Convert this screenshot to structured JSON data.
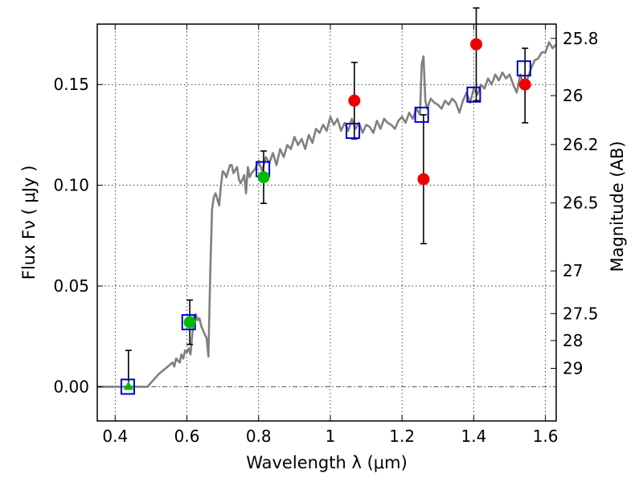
{
  "chart_data": {
    "type": "scatter",
    "xlabel": "Wavelength  λ (μm)",
    "ylabel": "Flux  Fν  ( μJy )",
    "y2label": "Magnitude (AB)",
    "xlim": [
      0.35,
      1.63
    ],
    "ylim": [
      -0.017,
      0.18
    ],
    "grid": true,
    "x_ticks": [
      0.4,
      0.6,
      0.8,
      1.0,
      1.2,
      1.4,
      1.6
    ],
    "x_tick_labels": [
      "0.4",
      "0.6",
      "0.8",
      "1",
      "1.2",
      "1.4",
      "1.6"
    ],
    "y_ticks": [
      0.0,
      0.05,
      0.1,
      0.15
    ],
    "y_tick_labels": [
      "0.00",
      "0.05",
      "0.10",
      "0.15"
    ],
    "magnitude_ticks": [
      {
        "label": "25.8",
        "flux": 0.1729
      },
      {
        "label": "26",
        "flux": 0.1445
      },
      {
        "label": "26.2",
        "flux": 0.1202
      },
      {
        "label": "26.5",
        "flux": 0.0912
      },
      {
        "label": "27",
        "flux": 0.0575
      },
      {
        "label": "27.5",
        "flux": 0.0363
      },
      {
        "label": "28",
        "flux": 0.0229
      },
      {
        "label": "29",
        "flux": 0.0091
      }
    ],
    "baseline_y": 0.0,
    "colors": {
      "model": "#808080",
      "model_photometry": "#0000cc",
      "red_points": "#ee0000",
      "green_points": "#00bb00",
      "errorbar": "#000000",
      "baseline": "#555555"
    },
    "series": [
      {
        "kind": "line",
        "color": "#808080",
        "x": [
          0.35,
          0.49,
          0.5,
          0.52,
          0.54,
          0.56,
          0.565,
          0.57,
          0.58,
          0.585,
          0.59,
          0.595,
          0.6,
          0.605,
          0.61,
          0.615,
          0.62,
          0.625,
          0.63,
          0.635,
          0.64,
          0.645,
          0.65,
          0.655,
          0.66,
          0.665,
          0.67,
          0.675,
          0.68,
          0.69,
          0.695,
          0.7,
          0.705,
          0.71,
          0.72,
          0.725,
          0.73,
          0.74,
          0.745,
          0.75,
          0.76,
          0.765,
          0.77,
          0.775,
          0.78,
          0.79,
          0.8,
          0.81,
          0.82,
          0.83,
          0.84,
          0.85,
          0.86,
          0.87,
          0.88,
          0.89,
          0.9,
          0.91,
          0.92,
          0.93,
          0.94,
          0.95,
          0.96,
          0.97,
          0.98,
          0.99,
          1.0,
          1.01,
          1.02,
          1.03,
          1.04,
          1.05,
          1.06,
          1.07,
          1.08,
          1.09,
          1.1,
          1.11,
          1.12,
          1.13,
          1.14,
          1.15,
          1.16,
          1.17,
          1.18,
          1.19,
          1.2,
          1.21,
          1.22,
          1.23,
          1.24,
          1.25,
          1.255,
          1.26,
          1.265,
          1.27,
          1.28,
          1.29,
          1.3,
          1.31,
          1.32,
          1.33,
          1.34,
          1.35,
          1.36,
          1.37,
          1.38,
          1.39,
          1.4,
          1.41,
          1.42,
          1.43,
          1.44,
          1.45,
          1.46,
          1.47,
          1.48,
          1.49,
          1.5,
          1.51,
          1.52,
          1.53,
          1.54,
          1.55,
          1.56,
          1.57,
          1.58,
          1.59,
          1.6,
          1.61,
          1.62,
          1.63
        ],
        "y": [
          0.0,
          0.0,
          0.002,
          0.006,
          0.009,
          0.012,
          0.01,
          0.014,
          0.012,
          0.016,
          0.014,
          0.018,
          0.017,
          0.019,
          0.016,
          0.026,
          0.035,
          0.036,
          0.033,
          0.034,
          0.03,
          0.028,
          0.026,
          0.024,
          0.015,
          0.055,
          0.088,
          0.094,
          0.096,
          0.09,
          0.1,
          0.107,
          0.106,
          0.104,
          0.11,
          0.11,
          0.106,
          0.109,
          0.103,
          0.101,
          0.105,
          0.096,
          0.109,
          0.104,
          0.106,
          0.108,
          0.112,
          0.107,
          0.114,
          0.111,
          0.116,
          0.11,
          0.118,
          0.114,
          0.12,
          0.118,
          0.124,
          0.12,
          0.123,
          0.118,
          0.125,
          0.121,
          0.128,
          0.126,
          0.13,
          0.127,
          0.134,
          0.13,
          0.133,
          0.127,
          0.131,
          0.127,
          0.133,
          0.128,
          0.131,
          0.126,
          0.13,
          0.129,
          0.126,
          0.132,
          0.128,
          0.133,
          0.131,
          0.13,
          0.128,
          0.132,
          0.134,
          0.131,
          0.136,
          0.133,
          0.138,
          0.135,
          0.16,
          0.164,
          0.142,
          0.138,
          0.143,
          0.141,
          0.14,
          0.138,
          0.142,
          0.14,
          0.143,
          0.141,
          0.136,
          0.142,
          0.146,
          0.141,
          0.148,
          0.145,
          0.15,
          0.148,
          0.153,
          0.15,
          0.155,
          0.152,
          0.156,
          0.153,
          0.155,
          0.15,
          0.146,
          0.155,
          0.149,
          0.153,
          0.158,
          0.162,
          0.163,
          0.166,
          0.166,
          0.171,
          0.168,
          0.17
        ]
      },
      {
        "kind": "squares",
        "color": "#0000cc",
        "x": [
          0.435,
          0.605,
          0.812,
          1.063,
          1.255,
          1.4,
          1.54
        ],
        "y": [
          0.0,
          0.032,
          0.108,
          0.127,
          0.135,
          0.145,
          0.158
        ]
      },
      {
        "kind": "circles",
        "color": "#ee0000",
        "x": [
          1.067,
          1.26,
          1.407,
          1.543
        ],
        "y": [
          0.142,
          0.103,
          0.17,
          0.15
        ],
        "err_low": [
          0.019,
          0.032,
          0.028,
          0.019
        ],
        "err_high": [
          0.019,
          0.032,
          0.018,
          0.018
        ]
      },
      {
        "kind": "circles",
        "color": "#00bb00",
        "x": [
          0.608,
          0.814
        ],
        "y": [
          0.032,
          0.104
        ],
        "err_low": [
          0.011,
          0.013
        ],
        "err_high": [
          0.011,
          0.013
        ]
      },
      {
        "kind": "triangle-upper-limit",
        "color": "#00bb00",
        "x": [
          0.437
        ],
        "y": [
          0.0
        ],
        "err_low": [
          0.0
        ],
        "err_high": [
          0.018
        ]
      }
    ]
  }
}
